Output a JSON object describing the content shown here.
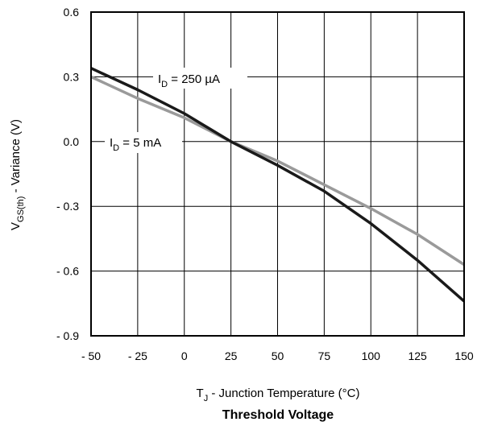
{
  "chart_data": {
    "type": "line",
    "title": "Threshold Voltage",
    "xlabel": {
      "main": "T",
      "sub": "J",
      "rest": " - Junction Temperature (°C)"
    },
    "ylabel": {
      "main": "V",
      "sub": "GS(th)",
      "rest": " - Variance (V)"
    },
    "xlim": [
      -50,
      150
    ],
    "ylim": [
      -0.9,
      0.6
    ],
    "xticks": [
      -50,
      -25,
      0,
      25,
      50,
      75,
      100,
      125,
      150
    ],
    "xtick_labels": [
      "- 50",
      "- 25",
      "0",
      "25",
      "50",
      "75",
      "100",
      "125",
      "150"
    ],
    "yticks": [
      0.6,
      0.3,
      0.0,
      -0.3,
      -0.6,
      -0.9
    ],
    "ytick_labels": [
      "0.6",
      "0.3",
      "0.0",
      "- 0.3",
      "- 0.6",
      "- 0.9"
    ],
    "grid": true,
    "series": [
      {
        "label": {
          "main": "I",
          "sub": "D",
          "rest": " = 250 µA"
        },
        "color": "#1a1a1a",
        "x": [
          -50,
          -25,
          0,
          25,
          50,
          75,
          100,
          125,
          150
        ],
        "y": [
          0.34,
          0.24,
          0.13,
          0.0,
          -0.11,
          -0.23,
          -0.38,
          -0.55,
          -0.74
        ]
      },
      {
        "label": {
          "main": "I",
          "sub": "D",
          "rest": " = 5 mA"
        },
        "color": "#9a9a9a",
        "x": [
          -50,
          -25,
          0,
          25,
          50,
          75,
          100,
          125,
          150
        ],
        "y": [
          0.3,
          0.2,
          0.11,
          0.0,
          -0.09,
          -0.2,
          -0.31,
          -0.43,
          -0.57
        ]
      }
    ]
  }
}
